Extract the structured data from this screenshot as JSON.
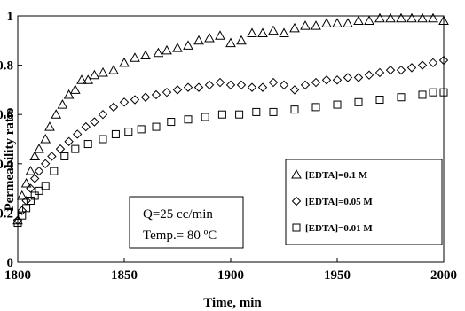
{
  "chart_data": {
    "type": "scatter",
    "xlabel": "Time, min",
    "ylabel": "Permeability ratio",
    "xlim": [
      1800,
      2000
    ],
    "ylim": [
      0,
      1
    ],
    "x_ticks": [
      "1800",
      "1850",
      "1900",
      "1950",
      "2000"
    ],
    "y_ticks": [
      "0",
      "0.2",
      "0.4",
      "0.6",
      "0.8",
      "1"
    ],
    "legend_position": "right",
    "annotation": [
      "Q=25 cc/min",
      "Temp.= 80 ºC"
    ],
    "series": [
      {
        "name": "[EDTA]=0.1 M",
        "marker": "triangle",
        "x": [
          1800,
          1802,
          1804,
          1806,
          1808,
          1810,
          1813,
          1815,
          1818,
          1821,
          1824,
          1827,
          1830,
          1833,
          1836,
          1840,
          1845,
          1850,
          1855,
          1860,
          1866,
          1870,
          1875,
          1880,
          1885,
          1890,
          1895,
          1900,
          1905,
          1910,
          1915,
          1920,
          1925,
          1930,
          1935,
          1940,
          1945,
          1950,
          1955,
          1960,
          1965,
          1970,
          1975,
          1980,
          1985,
          1990,
          1995,
          2000
        ],
        "y": [
          0.17,
          0.27,
          0.32,
          0.37,
          0.43,
          0.46,
          0.5,
          0.55,
          0.6,
          0.64,
          0.68,
          0.7,
          0.74,
          0.74,
          0.76,
          0.77,
          0.78,
          0.81,
          0.83,
          0.84,
          0.85,
          0.86,
          0.87,
          0.88,
          0.9,
          0.91,
          0.92,
          0.89,
          0.9,
          0.93,
          0.93,
          0.94,
          0.93,
          0.95,
          0.96,
          0.96,
          0.97,
          0.97,
          0.97,
          0.98,
          0.98,
          0.99,
          0.99,
          0.99,
          0.99,
          0.99,
          0.99,
          0.98
        ]
      },
      {
        "name": "[EDTA]=0.05 M",
        "marker": "diamond",
        "x": [
          1800,
          1802,
          1804,
          1806,
          1808,
          1810,
          1813,
          1816,
          1820,
          1824,
          1828,
          1832,
          1836,
          1840,
          1845,
          1850,
          1855,
          1860,
          1865,
          1870,
          1875,
          1880,
          1885,
          1890,
          1895,
          1900,
          1905,
          1910,
          1915,
          1920,
          1925,
          1930,
          1935,
          1940,
          1945,
          1950,
          1955,
          1960,
          1965,
          1970,
          1975,
          1980,
          1985,
          1990,
          1995,
          2000
        ],
        "y": [
          0.17,
          0.21,
          0.25,
          0.3,
          0.34,
          0.37,
          0.4,
          0.43,
          0.46,
          0.49,
          0.52,
          0.55,
          0.57,
          0.6,
          0.63,
          0.65,
          0.66,
          0.67,
          0.68,
          0.69,
          0.7,
          0.71,
          0.71,
          0.72,
          0.73,
          0.72,
          0.72,
          0.71,
          0.71,
          0.73,
          0.72,
          0.7,
          0.72,
          0.73,
          0.74,
          0.74,
          0.75,
          0.75,
          0.76,
          0.77,
          0.78,
          0.78,
          0.79,
          0.8,
          0.81,
          0.82
        ]
      },
      {
        "name": "[EDTA]=0.01 M",
        "marker": "square",
        "x": [
          1800,
          1802,
          1804,
          1806,
          1808,
          1810,
          1813,
          1817,
          1822,
          1827,
          1833,
          1840,
          1846,
          1852,
          1858,
          1865,
          1872,
          1880,
          1888,
          1896,
          1904,
          1912,
          1920,
          1930,
          1940,
          1950,
          1960,
          1970,
          1980,
          1990,
          1995,
          2000
        ],
        "y": [
          0.16,
          0.19,
          0.22,
          0.25,
          0.27,
          0.29,
          0.31,
          0.37,
          0.43,
          0.46,
          0.48,
          0.5,
          0.52,
          0.53,
          0.54,
          0.55,
          0.57,
          0.58,
          0.59,
          0.6,
          0.6,
          0.61,
          0.61,
          0.62,
          0.63,
          0.64,
          0.65,
          0.66,
          0.67,
          0.68,
          0.69,
          0.69
        ]
      }
    ]
  }
}
